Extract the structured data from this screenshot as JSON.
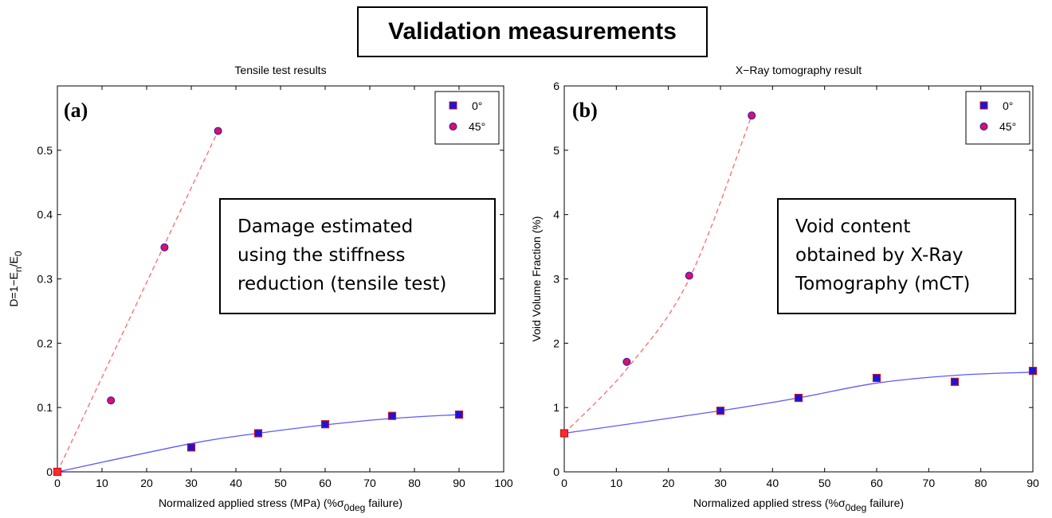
{
  "main_title": "Validation measurements",
  "chart_data": [
    {
      "type": "scatter",
      "panel_label": "(a)",
      "title": "Tensile test results",
      "xlabel": "Normalized applied stress (MPa) (%σ0deg failure)",
      "ylabel": "D=1−En/E0",
      "xlim": [
        0,
        100
      ],
      "ylim": [
        0,
        0.6
      ],
      "x_ticks": [
        "0",
        "10",
        "20",
        "30",
        "40",
        "50",
        "60",
        "70",
        "80",
        "90",
        "100"
      ],
      "y_ticks": [
        "0",
        "0.1",
        "0.2",
        "0.3",
        "0.4",
        "0.5"
      ],
      "annotation": [
        "Damage estimated",
        "using the stiffness",
        "reduction (tensile test)"
      ],
      "legend": [
        "0°",
        "45°"
      ],
      "series": [
        {
          "name": "0°",
          "marker": "square",
          "x": [
            0,
            30,
            45,
            60,
            75,
            90
          ],
          "y": [
            0,
            0.038,
            0.06,
            0.074,
            0.087,
            0.089
          ],
          "fit_x": [
            0,
            30,
            45,
            60,
            75,
            90
          ],
          "fit_y": [
            0,
            0.044,
            0.06,
            0.073,
            0.083,
            0.089
          ]
        },
        {
          "name": "45°",
          "marker": "circle",
          "x": [
            0,
            12,
            24,
            36
          ],
          "y": [
            0,
            0.111,
            0.349,
            0.53
          ],
          "fit_x": [
            0,
            36
          ],
          "fit_y": [
            0,
            0.53
          ]
        }
      ]
    },
    {
      "type": "scatter",
      "panel_label": "(b)",
      "title": "X−Ray tomography result",
      "xlabel": "Normalized applied stress (%σ0deg failure)",
      "ylabel": "Void Volume Fraction (%)",
      "xlim": [
        0,
        90
      ],
      "ylim": [
        0,
        6
      ],
      "x_ticks": [
        "0",
        "10",
        "20",
        "30",
        "40",
        "50",
        "60",
        "70",
        "80",
        "90"
      ],
      "y_ticks": [
        "0",
        "1",
        "2",
        "3",
        "4",
        "5",
        "6"
      ],
      "annotation": [
        "Void content",
        "obtained by X-Ray",
        "Tomography (mCT)"
      ],
      "legend": [
        "0°",
        "45°"
      ],
      "series": [
        {
          "name": "0°",
          "marker": "square",
          "x": [
            0,
            30,
            45,
            60,
            75,
            90
          ],
          "y": [
            0.6,
            0.95,
            1.15,
            1.46,
            1.4,
            1.57
          ],
          "fit_x": [
            0,
            30,
            45,
            60,
            75,
            90
          ],
          "fit_y": [
            0.6,
            0.95,
            1.15,
            1.38,
            1.5,
            1.55
          ]
        },
        {
          "name": "45°",
          "marker": "circle",
          "x": [
            0,
            12,
            24,
            36
          ],
          "y": [
            0.6,
            1.71,
            3.05,
            5.54
          ],
          "fit_x": [
            0,
            12,
            24,
            36
          ],
          "fit_y": [
            0.6,
            1.6,
            3.0,
            5.54
          ]
        }
      ]
    }
  ],
  "colors": {
    "marker_fill_0": "#1515e0",
    "marker_fill_45": "#e0105a",
    "marker_edge": "#cc1020",
    "line_0": "#5a5aff",
    "line_45": "#ff6a6a",
    "first_point": "#ff2a2a"
  }
}
